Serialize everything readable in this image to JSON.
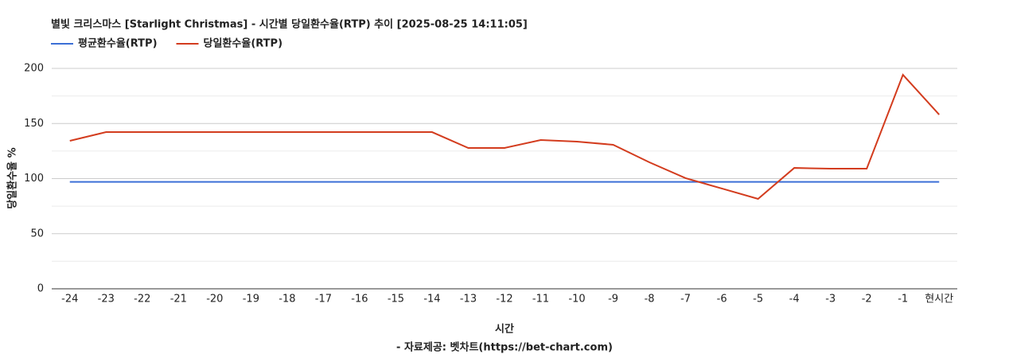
{
  "chart_data": {
    "type": "line",
    "title": "별빛 크리스마스 [Starlight Christmas] - 시간별 당일환수율(RTP) 추이 [2025-08-25 14:11:05]",
    "x_label": "시간",
    "y_label": "당일환수율 %",
    "source": "- 자료제공: 벳차트(https://bet-chart.com)",
    "categories": [
      "-24",
      "-23",
      "-22",
      "-21",
      "-20",
      "-19",
      "-18",
      "-17",
      "-16",
      "-15",
      "-14",
      "-13",
      "-12",
      "-11",
      "-10",
      "-9",
      "-8",
      "-7",
      "-6",
      "-5",
      "-4",
      "-3",
      "-2",
      "-1",
      "현시간"
    ],
    "series": [
      {
        "name": "평균환수율(RTP)",
        "color": "#3c6fd6",
        "values": [
          97,
          97,
          97,
          97,
          97,
          97,
          97,
          97,
          97,
          97,
          97,
          97,
          97,
          97,
          97,
          97,
          97,
          97,
          97,
          97,
          97,
          97,
          97,
          97,
          97
        ]
      },
      {
        "name": "당일환수율(RTP)",
        "color": "#d33c1e",
        "values": [
          134.3,
          142.2,
          142.2,
          142.2,
          142.2,
          142.2,
          142.2,
          142.2,
          142.2,
          142.2,
          142.2,
          127.8,
          127.8,
          135,
          133.6,
          130.7,
          114.8,
          100.4,
          91,
          81.6,
          109.7,
          109,
          109,
          194.2,
          158.1
        ]
      }
    ],
    "ylim": [
      0,
      200
    ],
    "yticks": [
      0,
      50,
      100,
      150,
      200
    ],
    "minor_gridlines": [
      25,
      75,
      125,
      175
    ],
    "grid": true,
    "legend": "top-left"
  }
}
